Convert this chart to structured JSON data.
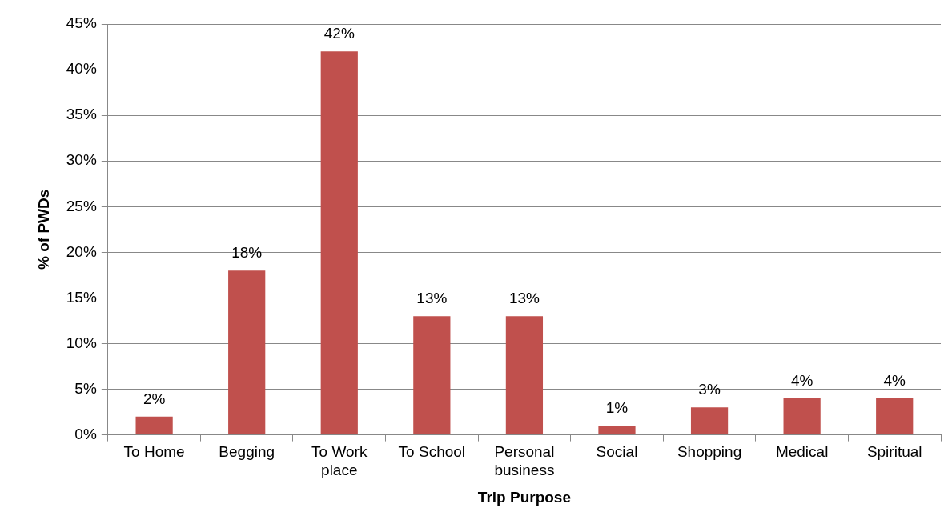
{
  "chart_data": {
    "type": "bar",
    "xlabel": "Trip Purpose",
    "ylabel": "% of PWDs",
    "categories": [
      "To Home",
      "Begging",
      "To Work place",
      "To School",
      "Personal business",
      "Social",
      "Shopping",
      "Medical",
      "Spiritual"
    ],
    "values": [
      2,
      18,
      42,
      13,
      13,
      1,
      3,
      4,
      4
    ],
    "value_labels": [
      "2%",
      "18%",
      "42%",
      "13%",
      "13%",
      "1%",
      "3%",
      "4%",
      "4%"
    ],
    "color": "#c0504d",
    "ylim": [
      0,
      45
    ],
    "yticks": [
      {
        "value": 0,
        "label": "0%"
      },
      {
        "value": 5,
        "label": "5%"
      },
      {
        "value": 10,
        "label": "10%"
      },
      {
        "value": 15,
        "label": "15%"
      },
      {
        "value": 20,
        "label": "20%"
      },
      {
        "value": 25,
        "label": "25%"
      },
      {
        "value": 30,
        "label": "30%"
      },
      {
        "value": 35,
        "label": "35%"
      },
      {
        "value": 40,
        "label": "40%"
      },
      {
        "value": 45,
        "label": "45%"
      }
    ],
    "grid": "y",
    "legend": false
  }
}
